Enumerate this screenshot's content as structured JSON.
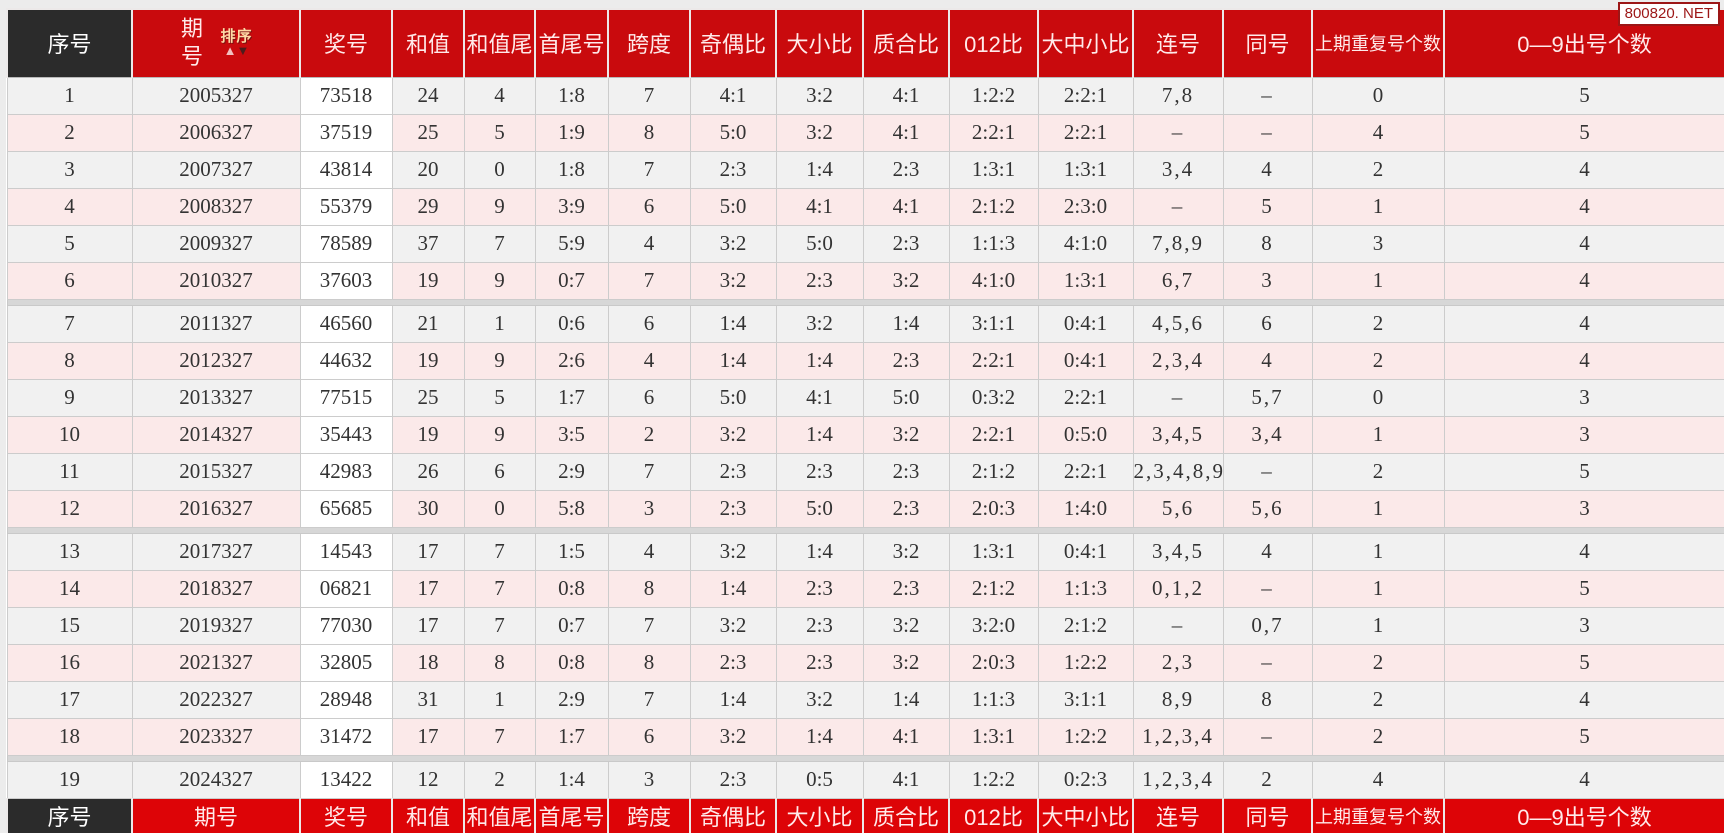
{
  "watermark": "800820. NET",
  "colors": {
    "header_red": "#c90a0d",
    "footer_red": "#dd0407",
    "corner_black": "#2b2b2b",
    "row_gray": "#f1f1f1",
    "row_pink": "#fbe9e9",
    "prize_cell_white": "#ffffff",
    "border_gray": "#cccccc",
    "text_dark": "#333333",
    "watermark_red": "#9c1616",
    "page_bg": "#ececec"
  },
  "table": {
    "sort": {
      "label": "排序",
      "up": "▲",
      "down": "▼"
    },
    "columns": [
      {
        "key": "xuhao",
        "label": "序号"
      },
      {
        "key": "qihao",
        "label": "期号"
      },
      {
        "key": "jianghao",
        "label": "奖号"
      },
      {
        "key": "hezhi",
        "label": "和值"
      },
      {
        "key": "hezhiwei",
        "label": "和值尾"
      },
      {
        "key": "shouweihao",
        "label": "首尾号"
      },
      {
        "key": "kuadu",
        "label": "跨度"
      },
      {
        "key": "jioubi",
        "label": "奇偶比"
      },
      {
        "key": "daxiaobi",
        "label": "大小比"
      },
      {
        "key": "zhihebi",
        "label": "质合比"
      },
      {
        "key": "bi012",
        "label": "012比"
      },
      {
        "key": "dazhongxiaobi",
        "label": "大中小比"
      },
      {
        "key": "lianhao",
        "label": "连号"
      },
      {
        "key": "tonghao",
        "label": "同号"
      },
      {
        "key": "shangqichongfu",
        "label": "上期重复号个数"
      },
      {
        "key": "chuhaogeshu",
        "label": "0—9出号个数"
      }
    ],
    "rows": [
      {
        "xuhao": "1",
        "qihao": "2005327",
        "jianghao": "73518",
        "hezhi": "24",
        "hezhiwei": "4",
        "shouweihao": "1:8",
        "kuadu": "7",
        "jioubi": "4:1",
        "daxiaobi": "3:2",
        "zhihebi": "4:1",
        "bi012": "1:2:2",
        "dazhongxiaobi": "2:2:1",
        "lianhao": "7,8",
        "tonghao": "–",
        "shangqichongfu": "0",
        "chuhaogeshu": "5"
      },
      {
        "xuhao": "2",
        "qihao": "2006327",
        "jianghao": "37519",
        "hezhi": "25",
        "hezhiwei": "5",
        "shouweihao": "1:9",
        "kuadu": "8",
        "jioubi": "5:0",
        "daxiaobi": "3:2",
        "zhihebi": "4:1",
        "bi012": "2:2:1",
        "dazhongxiaobi": "2:2:1",
        "lianhao": "–",
        "tonghao": "–",
        "shangqichongfu": "4",
        "chuhaogeshu": "5"
      },
      {
        "xuhao": "3",
        "qihao": "2007327",
        "jianghao": "43814",
        "hezhi": "20",
        "hezhiwei": "0",
        "shouweihao": "1:8",
        "kuadu": "7",
        "jioubi": "2:3",
        "daxiaobi": "1:4",
        "zhihebi": "2:3",
        "bi012": "1:3:1",
        "dazhongxiaobi": "1:3:1",
        "lianhao": "3,4",
        "tonghao": "4",
        "shangqichongfu": "2",
        "chuhaogeshu": "4"
      },
      {
        "xuhao": "4",
        "qihao": "2008327",
        "jianghao": "55379",
        "hezhi": "29",
        "hezhiwei": "9",
        "shouweihao": "3:9",
        "kuadu": "6",
        "jioubi": "5:0",
        "daxiaobi": "4:1",
        "zhihebi": "4:1",
        "bi012": "2:1:2",
        "dazhongxiaobi": "2:3:0",
        "lianhao": "–",
        "tonghao": "5",
        "shangqichongfu": "1",
        "chuhaogeshu": "4"
      },
      {
        "xuhao": "5",
        "qihao": "2009327",
        "jianghao": "78589",
        "hezhi": "37",
        "hezhiwei": "7",
        "shouweihao": "5:9",
        "kuadu": "4",
        "jioubi": "3:2",
        "daxiaobi": "5:0",
        "zhihebi": "2:3",
        "bi012": "1:1:3",
        "dazhongxiaobi": "4:1:0",
        "lianhao": "7,8,9",
        "tonghao": "8",
        "shangqichongfu": "3",
        "chuhaogeshu": "4"
      },
      {
        "xuhao": "6",
        "qihao": "2010327",
        "jianghao": "37603",
        "hezhi": "19",
        "hezhiwei": "9",
        "shouweihao": "0:7",
        "kuadu": "7",
        "jioubi": "3:2",
        "daxiaobi": "2:3",
        "zhihebi": "3:2",
        "bi012": "4:1:0",
        "dazhongxiaobi": "1:3:1",
        "lianhao": "6,7",
        "tonghao": "3",
        "shangqichongfu": "1",
        "chuhaogeshu": "4"
      },
      {
        "xuhao": "7",
        "qihao": "2011327",
        "jianghao": "46560",
        "hezhi": "21",
        "hezhiwei": "1",
        "shouweihao": "0:6",
        "kuadu": "6",
        "jioubi": "1:4",
        "daxiaobi": "3:2",
        "zhihebi": "1:4",
        "bi012": "3:1:1",
        "dazhongxiaobi": "0:4:1",
        "lianhao": "4,5,6",
        "tonghao": "6",
        "shangqichongfu": "2",
        "chuhaogeshu": "4"
      },
      {
        "xuhao": "8",
        "qihao": "2012327",
        "jianghao": "44632",
        "hezhi": "19",
        "hezhiwei": "9",
        "shouweihao": "2:6",
        "kuadu": "4",
        "jioubi": "1:4",
        "daxiaobi": "1:4",
        "zhihebi": "2:3",
        "bi012": "2:2:1",
        "dazhongxiaobi": "0:4:1",
        "lianhao": "2,3,4",
        "tonghao": "4",
        "shangqichongfu": "2",
        "chuhaogeshu": "4"
      },
      {
        "xuhao": "9",
        "qihao": "2013327",
        "jianghao": "77515",
        "hezhi": "25",
        "hezhiwei": "5",
        "shouweihao": "1:7",
        "kuadu": "6",
        "jioubi": "5:0",
        "daxiaobi": "4:1",
        "zhihebi": "5:0",
        "bi012": "0:3:2",
        "dazhongxiaobi": "2:2:1",
        "lianhao": "–",
        "tonghao": "5,7",
        "shangqichongfu": "0",
        "chuhaogeshu": "3"
      },
      {
        "xuhao": "10",
        "qihao": "2014327",
        "jianghao": "35443",
        "hezhi": "19",
        "hezhiwei": "9",
        "shouweihao": "3:5",
        "kuadu": "2",
        "jioubi": "3:2",
        "daxiaobi": "1:4",
        "zhihebi": "3:2",
        "bi012": "2:2:1",
        "dazhongxiaobi": "0:5:0",
        "lianhao": "3,4,5",
        "tonghao": "3,4",
        "shangqichongfu": "1",
        "chuhaogeshu": "3"
      },
      {
        "xuhao": "11",
        "qihao": "2015327",
        "jianghao": "42983",
        "hezhi": "26",
        "hezhiwei": "6",
        "shouweihao": "2:9",
        "kuadu": "7",
        "jioubi": "2:3",
        "daxiaobi": "2:3",
        "zhihebi": "2:3",
        "bi012": "2:1:2",
        "dazhongxiaobi": "2:2:1",
        "lianhao": "2,3,4,8,9",
        "tonghao": "–",
        "shangqichongfu": "2",
        "chuhaogeshu": "5"
      },
      {
        "xuhao": "12",
        "qihao": "2016327",
        "jianghao": "65685",
        "hezhi": "30",
        "hezhiwei": "0",
        "shouweihao": "5:8",
        "kuadu": "3",
        "jioubi": "2:3",
        "daxiaobi": "5:0",
        "zhihebi": "2:3",
        "bi012": "2:0:3",
        "dazhongxiaobi": "1:4:0",
        "lianhao": "5,6",
        "tonghao": "5,6",
        "shangqichongfu": "1",
        "chuhaogeshu": "3"
      },
      {
        "xuhao": "13",
        "qihao": "2017327",
        "jianghao": "14543",
        "hezhi": "17",
        "hezhiwei": "7",
        "shouweihao": "1:5",
        "kuadu": "4",
        "jioubi": "3:2",
        "daxiaobi": "1:4",
        "zhihebi": "3:2",
        "bi012": "1:3:1",
        "dazhongxiaobi": "0:4:1",
        "lianhao": "3,4,5",
        "tonghao": "4",
        "shangqichongfu": "1",
        "chuhaogeshu": "4"
      },
      {
        "xuhao": "14",
        "qihao": "2018327",
        "jianghao": "06821",
        "hezhi": "17",
        "hezhiwei": "7",
        "shouweihao": "0:8",
        "kuadu": "8",
        "jioubi": "1:4",
        "daxiaobi": "2:3",
        "zhihebi": "2:3",
        "bi012": "2:1:2",
        "dazhongxiaobi": "1:1:3",
        "lianhao": "0,1,2",
        "tonghao": "–",
        "shangqichongfu": "1",
        "chuhaogeshu": "5"
      },
      {
        "xuhao": "15",
        "qihao": "2019327",
        "jianghao": "77030",
        "hezhi": "17",
        "hezhiwei": "7",
        "shouweihao": "0:7",
        "kuadu": "7",
        "jioubi": "3:2",
        "daxiaobi": "2:3",
        "zhihebi": "3:2",
        "bi012": "3:2:0",
        "dazhongxiaobi": "2:1:2",
        "lianhao": "–",
        "tonghao": "0,7",
        "shangqichongfu": "1",
        "chuhaogeshu": "3"
      },
      {
        "xuhao": "16",
        "qihao": "2021327",
        "jianghao": "32805",
        "hezhi": "18",
        "hezhiwei": "8",
        "shouweihao": "0:8",
        "kuadu": "8",
        "jioubi": "2:3",
        "daxiaobi": "2:3",
        "zhihebi": "3:2",
        "bi012": "2:0:3",
        "dazhongxiaobi": "1:2:2",
        "lianhao": "2,3",
        "tonghao": "–",
        "shangqichongfu": "2",
        "chuhaogeshu": "5"
      },
      {
        "xuhao": "17",
        "qihao": "2022327",
        "jianghao": "28948",
        "hezhi": "31",
        "hezhiwei": "1",
        "shouweihao": "2:9",
        "kuadu": "7",
        "jioubi": "1:4",
        "daxiaobi": "3:2",
        "zhihebi": "1:4",
        "bi012": "1:1:3",
        "dazhongxiaobi": "3:1:1",
        "lianhao": "8,9",
        "tonghao": "8",
        "shangqichongfu": "2",
        "chuhaogeshu": "4"
      },
      {
        "xuhao": "18",
        "qihao": "2023327",
        "jianghao": "31472",
        "hezhi": "17",
        "hezhiwei": "7",
        "shouweihao": "1:7",
        "kuadu": "6",
        "jioubi": "3:2",
        "daxiaobi": "1:4",
        "zhihebi": "4:1",
        "bi012": "1:3:1",
        "dazhongxiaobi": "1:2:2",
        "lianhao": "1,2,3,4",
        "tonghao": "–",
        "shangqichongfu": "2",
        "chuhaogeshu": "5"
      },
      {
        "xuhao": "19",
        "qihao": "2024327",
        "jianghao": "13422",
        "hezhi": "12",
        "hezhiwei": "2",
        "shouweihao": "1:4",
        "kuadu": "3",
        "jioubi": "2:3",
        "daxiaobi": "0:5",
        "zhihebi": "4:1",
        "bi012": "1:2:2",
        "dazhongxiaobi": "0:2:3",
        "lianhao": "1,2,3,4",
        "tonghao": "2",
        "shangqichongfu": "4",
        "chuhaogeshu": "4"
      }
    ]
  }
}
